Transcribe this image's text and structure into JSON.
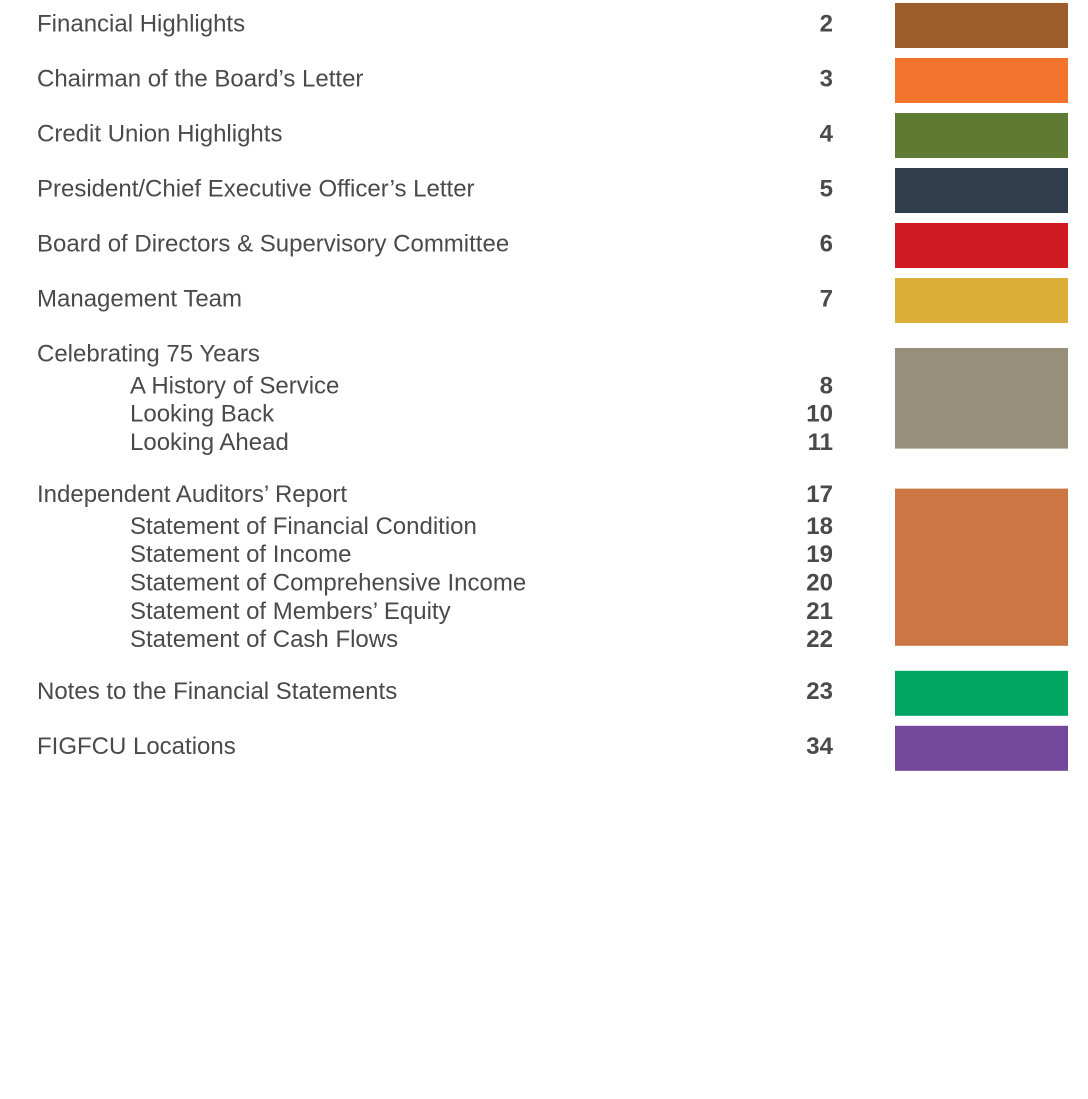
{
  "toc": {
    "entries": [
      {
        "title": "Financial Highlights",
        "page": "2",
        "color": "#9c5f2b"
      },
      {
        "title": "Chairman of the Board’s Letter",
        "page": "3",
        "color": "#f1732c"
      },
      {
        "title": "Credit Union Highlights",
        "page": "4",
        "color": "#5f7a33"
      },
      {
        "title": "President/Chief Executive Officer’s Letter",
        "page": "5",
        "color": "#2f3d4c"
      },
      {
        "title": "Board of Directors & Supervisory Committee",
        "page": "6",
        "color": "#d01a22"
      },
      {
        "title": "Management Team",
        "page": "7",
        "color": "#dbae38"
      },
      {
        "title": "Celebrating 75 Years",
        "color": "#978f7a",
        "children": [
          {
            "title": "A History of Service",
            "page": "8"
          },
          {
            "title": "Looking Back",
            "page": "10"
          },
          {
            "title": "Looking Ahead",
            "page": "11"
          }
        ]
      },
      {
        "title": "Independent Auditors’ Report",
        "page": "17",
        "color": "#cc7644",
        "children": [
          {
            "title": "Statement of Financial Condition",
            "page": "18"
          },
          {
            "title": "Statement of Income",
            "page": "19"
          },
          {
            "title": "Statement of Comprehensive Income",
            "page": "20"
          },
          {
            "title": "Statement of Members’ Equity",
            "page": "21"
          },
          {
            "title": "Statement of Cash Flows",
            "page": "22"
          }
        ]
      },
      {
        "title": "Notes to the Financial Statements",
        "page": "23",
        "color": "#00a562"
      },
      {
        "title": "FIGFCU Locations",
        "page": "34",
        "color": "#73489b"
      }
    ]
  }
}
